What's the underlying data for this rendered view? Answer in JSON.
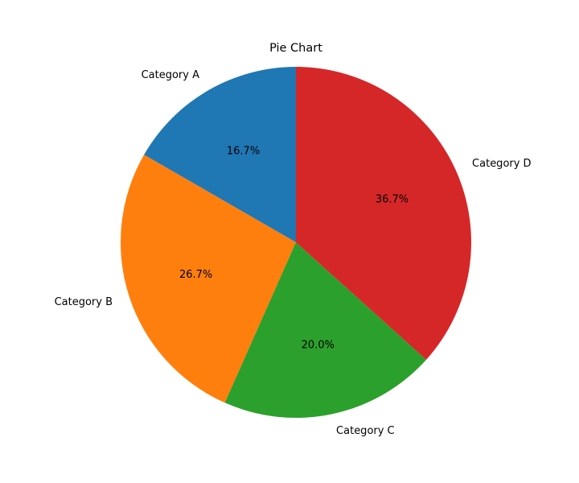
{
  "chart_data": {
    "type": "pie",
    "title": "Pie Chart",
    "start_angle_deg": 90,
    "direction": "counterclockwise",
    "categories": [
      "Category A",
      "Category B",
      "Category C",
      "Category D"
    ],
    "values": [
      16.7,
      26.7,
      20.0,
      36.7
    ],
    "percent_labels": [
      "16.7%",
      "26.7%",
      "20.0%",
      "36.7%"
    ],
    "colors": [
      "#1f77b4",
      "#ff7f0e",
      "#2ca02c",
      "#d62728"
    ],
    "legend": "none"
  }
}
